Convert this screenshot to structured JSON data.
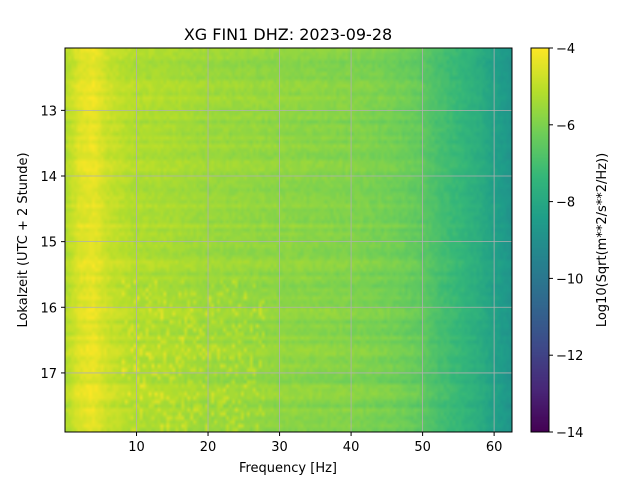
{
  "chart_data": {
    "type": "heatmap",
    "title": "XG FIN1  DHZ: 2023-09-28",
    "xlabel": "Frequency [Hz]",
    "ylabel": "Lokalzeit (UTC + 2 Stunde)",
    "colorbar_label": "Log10(Sqrt(m**2/s**2/Hz))",
    "colormap": "viridis",
    "xlim": [
      0,
      62.5
    ],
    "ylim": [
      17.9,
      12.05
    ],
    "y_inverted": true,
    "x_ticks": [
      10,
      20,
      30,
      40,
      50,
      60
    ],
    "y_ticks": [
      13,
      14,
      15,
      16,
      17
    ],
    "colorbar_range": [
      -14,
      -4
    ],
    "colorbar_ticks": [
      -4,
      -6,
      -8,
      -10,
      -12,
      -14
    ],
    "colorbar_tick_labels": [
      "−4",
      "−6",
      "−8",
      "−10",
      "−12",
      "−14"
    ],
    "grid": true,
    "spectrum_profile": {
      "frequency_hz": [
        0,
        2,
        4,
        6,
        10,
        15,
        20,
        25,
        30,
        35,
        40,
        45,
        48,
        50,
        52,
        55,
        58,
        60,
        62.5
      ],
      "log10_amplitude": [
        -5.2,
        -4.5,
        -4.3,
        -4.8,
        -5.2,
        -5.3,
        -5.5,
        -5.6,
        -5.7,
        -5.8,
        -5.9,
        -6.1,
        -6.3,
        -6.5,
        -6.9,
        -7.3,
        -7.8,
        -8.3,
        -8.8
      ]
    }
  }
}
